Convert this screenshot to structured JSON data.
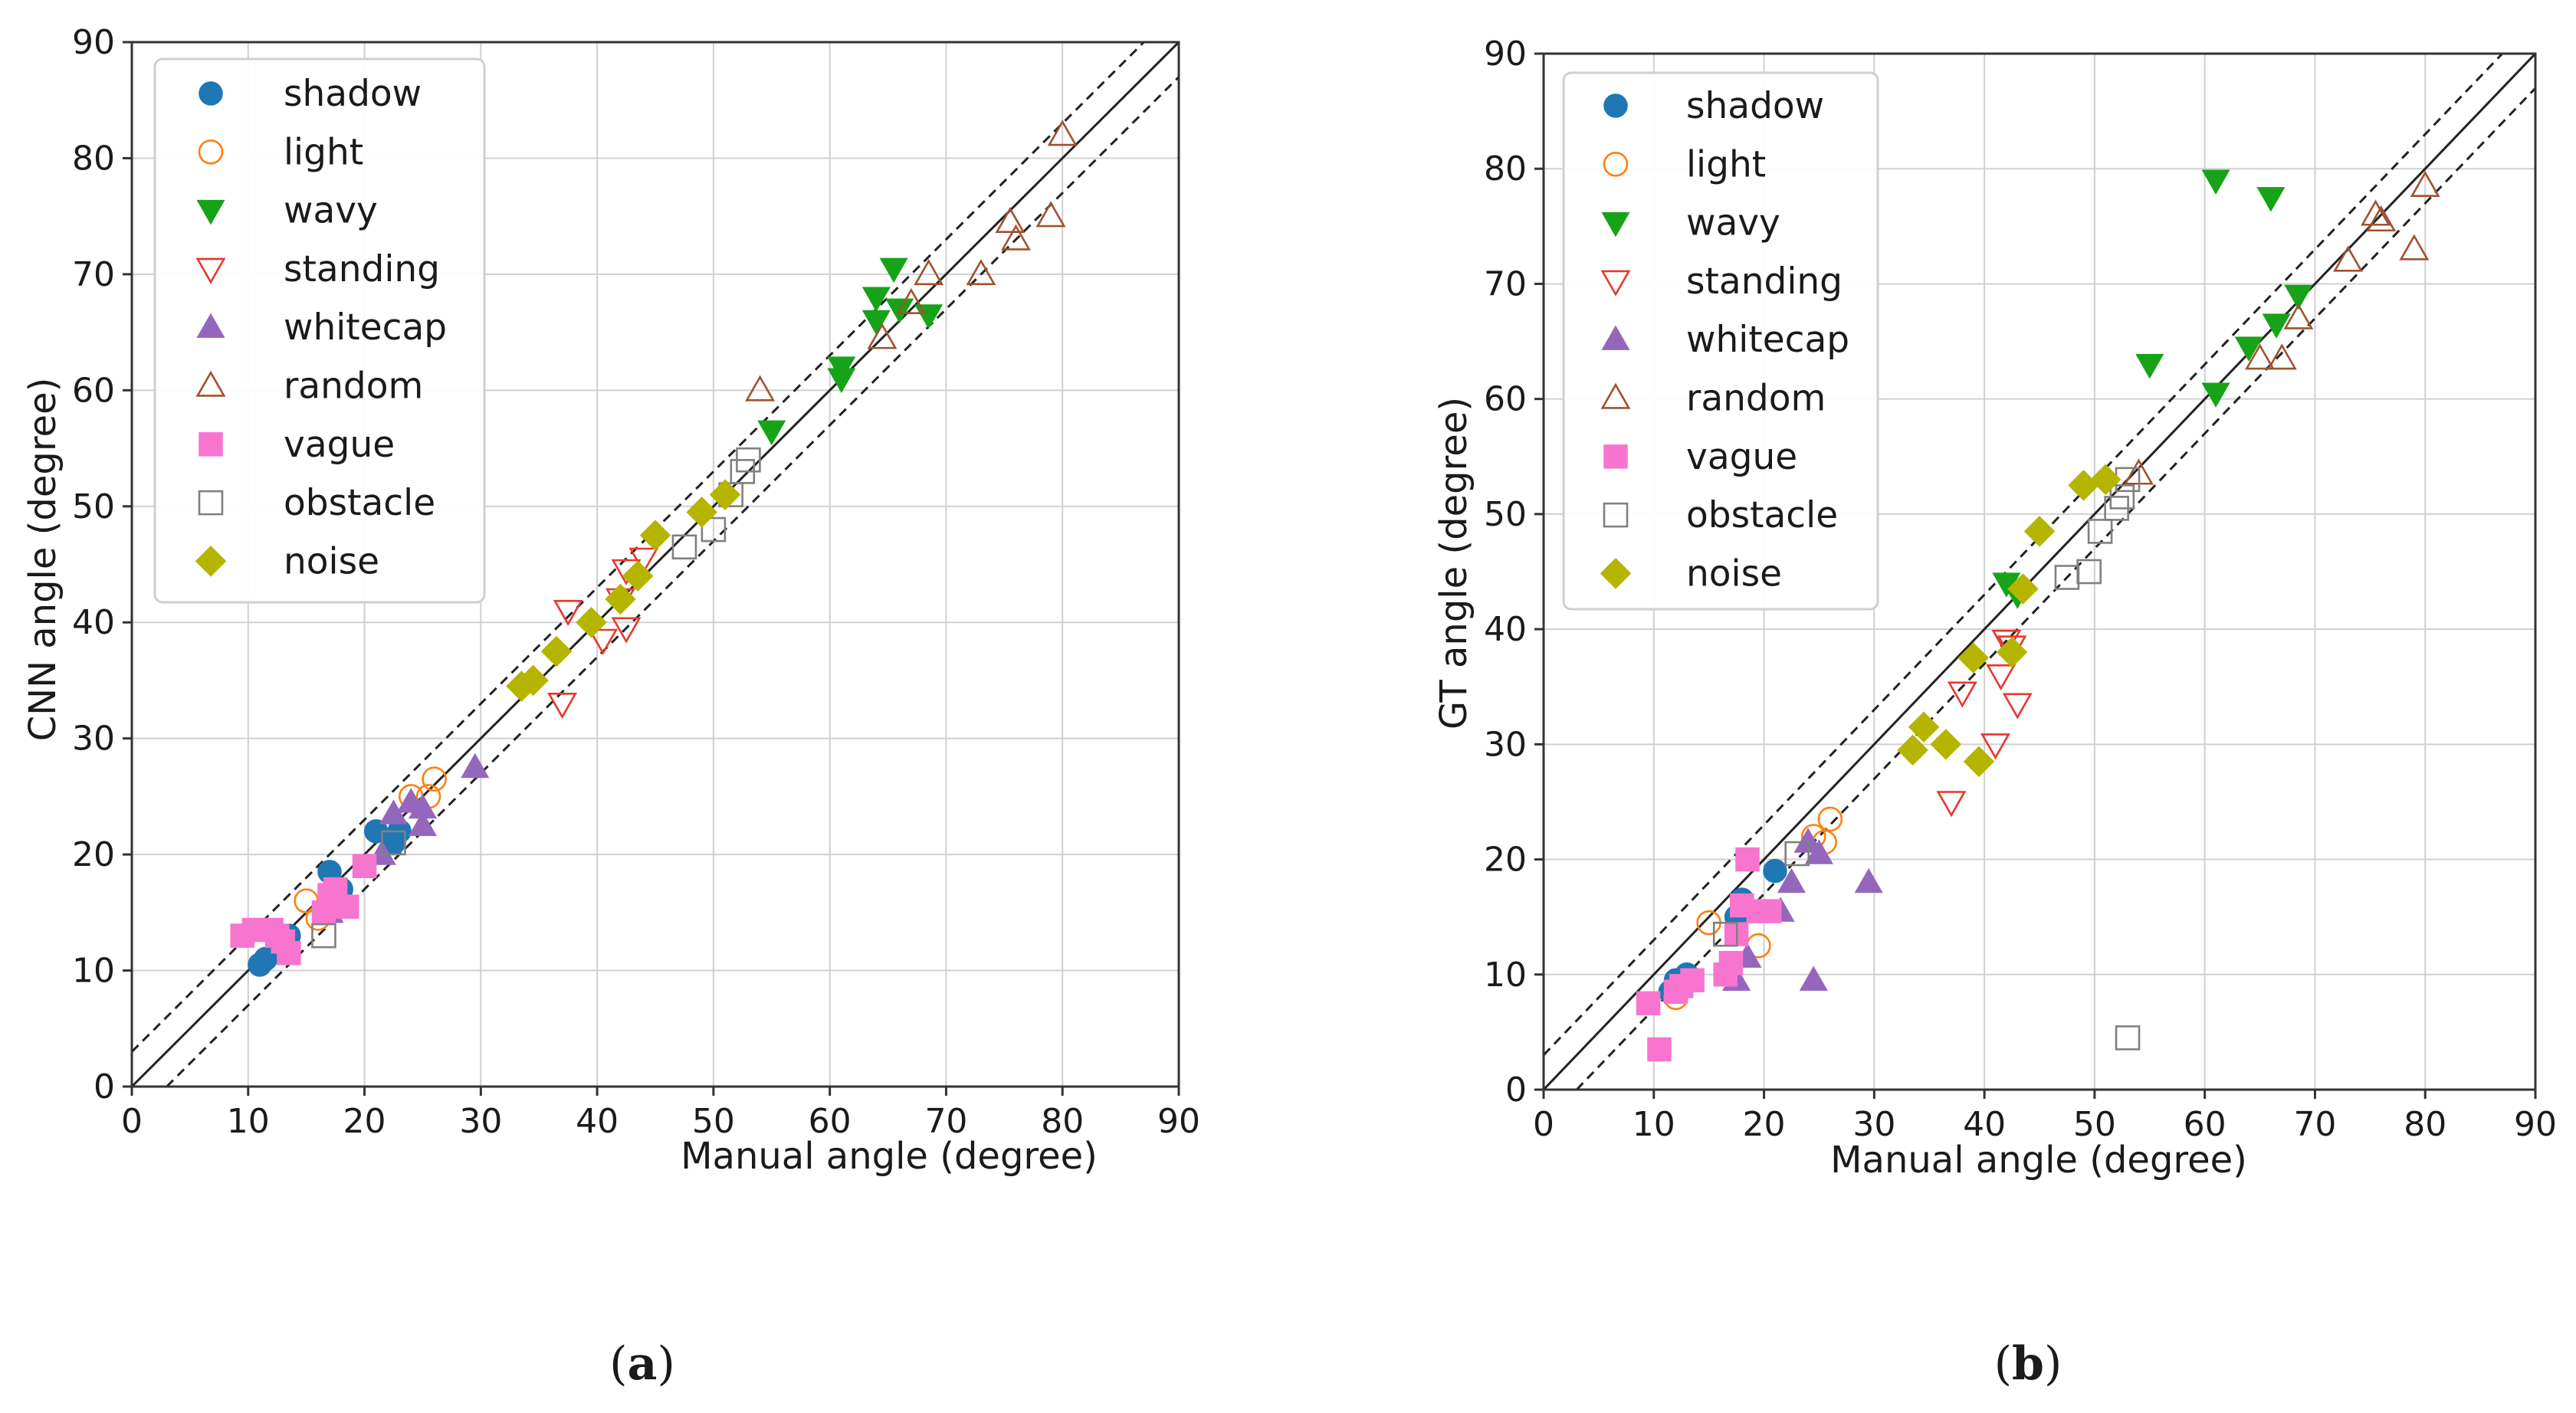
{
  "series_styles": {
    "shadow": {
      "marker": "circle",
      "filled": true,
      "color": "#1f77b4"
    },
    "light": {
      "marker": "circle",
      "filled": false,
      "color": "#ff7f0e"
    },
    "wavy": {
      "marker": "tri-down",
      "filled": true,
      "color": "#17a317"
    },
    "standing": {
      "marker": "tri-down",
      "filled": false,
      "color": "#e8372e"
    },
    "whitecap": {
      "marker": "tri-up",
      "filled": true,
      "color": "#9467bd"
    },
    "random": {
      "marker": "tri-up",
      "filled": false,
      "color": "#a0522d"
    },
    "vague": {
      "marker": "square",
      "filled": true,
      "color": "#f775cf"
    },
    "obstacle": {
      "marker": "square",
      "filled": false,
      "color": "#808080"
    },
    "noise": {
      "marker": "diamond",
      "filled": true,
      "color": "#b5b500"
    }
  },
  "chart_data": [
    {
      "type": "scatter",
      "panel": "a",
      "caption_label": "a",
      "title": "",
      "xlabel": "Manual angle (degree)",
      "ylabel": "CNN angle (degree)",
      "xlim": [
        0,
        90
      ],
      "ylim": [
        0,
        90
      ],
      "xticks": [
        0,
        10,
        20,
        30,
        40,
        50,
        60,
        70,
        80,
        90
      ],
      "yticks": [
        0,
        10,
        20,
        30,
        40,
        50,
        60,
        70,
        80,
        90
      ],
      "grid": true,
      "legend_position": "top-left",
      "reference_lines": [
        {
          "name": "y=x",
          "style": "solid",
          "offset": 0
        },
        {
          "name": "y=x+3",
          "style": "dashed",
          "offset": 3
        },
        {
          "name": "y=x-3",
          "style": "dashed",
          "offset": -3
        }
      ],
      "series": [
        {
          "name": "shadow",
          "points": [
            [
              11,
              10.5
            ],
            [
              11.5,
              11
            ],
            [
              13.5,
              13
            ],
            [
              17,
              18.5
            ],
            [
              18,
              17
            ],
            [
              21,
              22
            ],
            [
              22.5,
              21
            ],
            [
              23,
              22
            ]
          ]
        },
        {
          "name": "light",
          "points": [
            [
              15,
              16
            ],
            [
              16,
              14.5
            ],
            [
              24,
              25
            ],
            [
              25.5,
              25
            ],
            [
              26,
              26.5
            ]
          ]
        },
        {
          "name": "wavy",
          "points": [
            [
              55,
              56.5
            ],
            [
              61,
              62
            ],
            [
              61,
              61
            ],
            [
              64,
              66
            ],
            [
              64,
              68
            ],
            [
              65.5,
              70.5
            ],
            [
              66,
              67
            ],
            [
              68.5,
              66.5
            ]
          ]
        },
        {
          "name": "standing",
          "points": [
            [
              37,
              33
            ],
            [
              37.5,
              41
            ],
            [
              40.5,
              38.5
            ],
            [
              42,
              42
            ],
            [
              42.5,
              39.5
            ],
            [
              42.5,
              44.5
            ],
            [
              44,
              45.5
            ]
          ]
        },
        {
          "name": "whitecap",
          "points": [
            [
              17,
              15
            ],
            [
              18,
              15.5
            ],
            [
              21.5,
              20
            ],
            [
              22.5,
              23.5
            ],
            [
              24,
              24.5
            ],
            [
              25,
              24
            ],
            [
              25,
              22.5
            ],
            [
              29.5,
              27.5
            ]
          ]
        },
        {
          "name": "random",
          "points": [
            [
              54,
              60
            ],
            [
              64.5,
              64.5
            ],
            [
              67,
              67.5
            ],
            [
              68.5,
              70
            ],
            [
              73,
              70
            ],
            [
              75.5,
              74.5
            ],
            [
              76,
              73
            ],
            [
              79,
              75
            ],
            [
              80,
              82
            ]
          ]
        },
        {
          "name": "vague",
          "points": [
            [
              9.5,
              13
            ],
            [
              10.5,
              13.5
            ],
            [
              12,
              13.5
            ],
            [
              12.5,
              13
            ],
            [
              13,
              12.5
            ],
            [
              13.5,
              11.5
            ],
            [
              16.5,
              15
            ],
            [
              17,
              16.5
            ],
            [
              17.5,
              17
            ],
            [
              18,
              15.5
            ],
            [
              18.5,
              15.5
            ],
            [
              20,
              19
            ]
          ]
        },
        {
          "name": "obstacle",
          "points": [
            [
              16.5,
              13
            ],
            [
              22.5,
              21
            ],
            [
              47.5,
              46.5
            ],
            [
              50,
              48
            ],
            [
              51.5,
              51
            ],
            [
              52.5,
              53
            ],
            [
              53,
              54
            ]
          ]
        },
        {
          "name": "noise",
          "points": [
            [
              33.5,
              34.5
            ],
            [
              34.5,
              35
            ],
            [
              36.5,
              37.5
            ],
            [
              39.5,
              40
            ],
            [
              42,
              42
            ],
            [
              43.5,
              44
            ],
            [
              45,
              47.5
            ],
            [
              49,
              49.5
            ],
            [
              51,
              51
            ]
          ]
        }
      ]
    },
    {
      "type": "scatter",
      "panel": "b",
      "caption_label": "b",
      "title": "",
      "xlabel": "Manual angle (degree)",
      "ylabel": "GT angle (degree)",
      "xlim": [
        0,
        90
      ],
      "ylim": [
        0,
        90
      ],
      "xticks": [
        0,
        10,
        20,
        30,
        40,
        50,
        60,
        70,
        80,
        90
      ],
      "yticks": [
        0,
        10,
        20,
        30,
        40,
        50,
        60,
        70,
        80,
        90
      ],
      "grid": true,
      "legend_position": "top-left",
      "reference_lines": [
        {
          "name": "y=x",
          "style": "solid",
          "offset": 0
        },
        {
          "name": "y=x+3",
          "style": "dashed",
          "offset": 3
        },
        {
          "name": "y=x-3",
          "style": "dashed",
          "offset": -3
        }
      ],
      "series": [
        {
          "name": "shadow",
          "points": [
            [
              11.5,
              8.5
            ],
            [
              12,
              9.5
            ],
            [
              13,
              10
            ],
            [
              17.5,
              15
            ],
            [
              18,
              16.5
            ],
            [
              21,
              19
            ]
          ]
        },
        {
          "name": "light",
          "points": [
            [
              12,
              8
            ],
            [
              15,
              14.5
            ],
            [
              19.5,
              12.5
            ],
            [
              24.5,
              22
            ],
            [
              25.5,
              21.5
            ],
            [
              26,
              23.5
            ]
          ]
        },
        {
          "name": "wavy",
          "points": [
            [
              42,
              44
            ],
            [
              43,
              43
            ],
            [
              55,
              63
            ],
            [
              61,
              79
            ],
            [
              61,
              60.5
            ],
            [
              64,
              64.5
            ],
            [
              66,
              77.5
            ],
            [
              66.5,
              66.5
            ],
            [
              68.5,
              69
            ]
          ]
        },
        {
          "name": "standing",
          "points": [
            [
              37,
              25
            ],
            [
              38,
              34.5
            ],
            [
              41,
              30
            ],
            [
              41.5,
              36
            ],
            [
              42,
              39
            ],
            [
              42.5,
              38.5
            ],
            [
              43,
              33.5
            ]
          ]
        },
        {
          "name": "whitecap",
          "points": [
            [
              17.5,
              9.5
            ],
            [
              18.5,
              11.5
            ],
            [
              21.5,
              15.5
            ],
            [
              22.5,
              18
            ],
            [
              24,
              21.5
            ],
            [
              24.5,
              9.5
            ],
            [
              25,
              20.5
            ],
            [
              29.5,
              18
            ]
          ]
        },
        {
          "name": "random",
          "points": [
            [
              54,
              53.5
            ],
            [
              65,
              63.5
            ],
            [
              68.5,
              67
            ],
            [
              73,
              72
            ],
            [
              75.5,
              76
            ],
            [
              76,
              75.5
            ],
            [
              79,
              73
            ],
            [
              80,
              78.5
            ],
            [
              67,
              63.5
            ]
          ]
        },
        {
          "name": "vague",
          "points": [
            [
              9.5,
              7.5
            ],
            [
              10.5,
              3.5
            ],
            [
              12,
              8.5
            ],
            [
              12.5,
              9
            ],
            [
              13.5,
              9.5
            ],
            [
              16.5,
              10
            ],
            [
              17,
              11
            ],
            [
              17.5,
              13.5
            ],
            [
              18,
              16
            ],
            [
              18.5,
              20
            ],
            [
              19.5,
              15.5
            ],
            [
              20.5,
              15.5
            ]
          ]
        },
        {
          "name": "obstacle",
          "points": [
            [
              16.5,
              13.5
            ],
            [
              23,
              20.5
            ],
            [
              47.5,
              44.5
            ],
            [
              49.5,
              45
            ],
            [
              50.5,
              48.5
            ],
            [
              52,
              50.5
            ],
            [
              52.5,
              51.5
            ],
            [
              53,
              53
            ],
            [
              53,
              4.5
            ]
          ]
        },
        {
          "name": "noise",
          "points": [
            [
              33.5,
              29.5
            ],
            [
              34.5,
              31.5
            ],
            [
              36.5,
              30
            ],
            [
              39,
              37.5
            ],
            [
              39.5,
              28.5
            ],
            [
              42.5,
              38
            ],
            [
              43.5,
              43.5
            ],
            [
              45,
              48.5
            ],
            [
              49,
              52.5
            ],
            [
              51,
              53
            ]
          ]
        }
      ]
    }
  ]
}
